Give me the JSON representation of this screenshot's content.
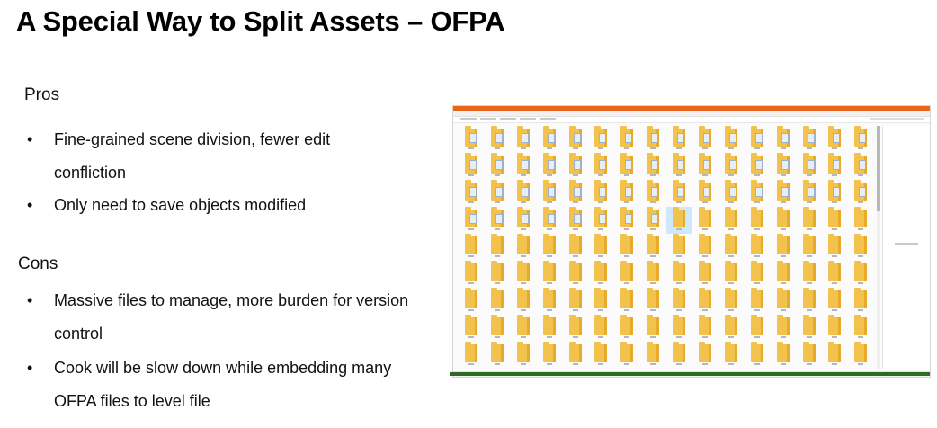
{
  "slide": {
    "title": "A Special Way to Split Assets – OFPA",
    "pros": {
      "label": "Pros",
      "items": [
        {
          "bullet": "•",
          "lines": [
            "Fine-grained scene division, fewer edit",
            "confliction"
          ]
        },
        {
          "bullet": "•",
          "lines": [
            "Only need to save objects modified"
          ]
        }
      ]
    },
    "cons": {
      "label": "Cons",
      "items": [
        {
          "bullet": "•",
          "lines": [
            "Massive files to manage, more burden for version",
            "control"
          ]
        },
        {
          "bullet": "•",
          "lines": [
            "Cook will be slow down while embedding many",
            "OFPA files to level file"
          ]
        }
      ]
    }
  },
  "screenshot": {
    "description_icon": "file-explorer-window",
    "accent_color": "#e9651b",
    "folder_color": "#f3c24d",
    "grid": {
      "columns": 16,
      "rows": 9,
      "selected_index": 56,
      "doc_folder_count": 56
    },
    "status_line_color": "#2e6b24"
  }
}
